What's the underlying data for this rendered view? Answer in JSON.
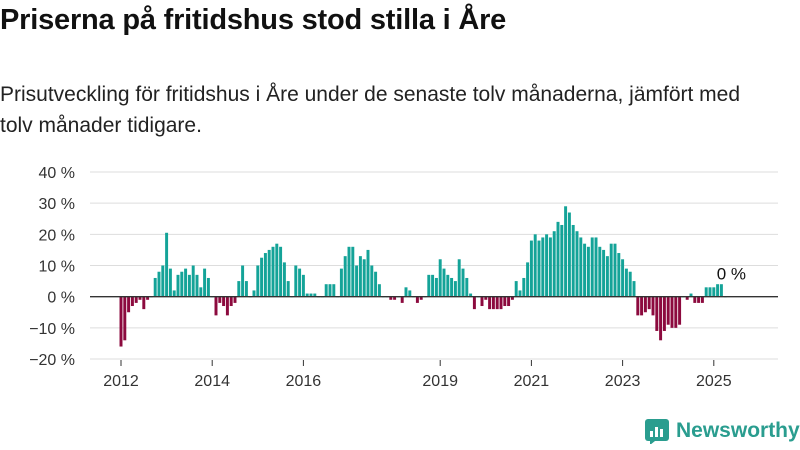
{
  "title": "Priserna på fritidshus stod stilla i Åre",
  "subtitle": "Prisutveckling för fritidshus i Åre under de senaste tolv månaderna, jämfört med tolv månader tidigare.",
  "brand": "Newsworthy",
  "colors": {
    "positive": "#14a398",
    "negative": "#8c0a3e",
    "grid": "#dddddd",
    "axis": "#333333",
    "brand": "#2a9d8f"
  },
  "chart_data": {
    "type": "bar",
    "ylim": [
      -20,
      40
    ],
    "yticks": [
      -20,
      -10,
      0,
      10,
      20,
      30,
      40
    ],
    "ytick_labels": [
      "−20 %",
      "−10 %",
      "0 %",
      "10 %",
      "20 %",
      "30 %",
      "40 %"
    ],
    "xticks": [
      {
        "label": "2012",
        "x": "2012-01"
      },
      {
        "label": "2014",
        "x": "2014-01"
      },
      {
        "label": "2016",
        "x": "2016-01"
      },
      {
        "label": "2019",
        "x": "2019-01"
      },
      {
        "label": "2021",
        "x": "2021-01"
      },
      {
        "label": "2023",
        "x": "2023-01"
      },
      {
        "label": "2025",
        "x": "2025-01"
      }
    ],
    "annotation": {
      "text": "0 %",
      "x": "2025-03"
    },
    "x": [
      "2012-01",
      "2012-02",
      "2012-03",
      "2012-04",
      "2012-05",
      "2012-06",
      "2012-07",
      "2012-08",
      "2012-09",
      "2012-10",
      "2012-11",
      "2012-12",
      "2013-01",
      "2013-02",
      "2013-03",
      "2013-04",
      "2013-05",
      "2013-06",
      "2013-07",
      "2013-08",
      "2013-09",
      "2013-10",
      "2013-11",
      "2013-12",
      "2014-01",
      "2014-02",
      "2014-03",
      "2014-04",
      "2014-05",
      "2014-06",
      "2014-07",
      "2014-08",
      "2014-09",
      "2014-10",
      "2014-11",
      "2014-12",
      "2015-01",
      "2015-02",
      "2015-03",
      "2015-04",
      "2015-05",
      "2015-06",
      "2015-07",
      "2015-08",
      "2015-09",
      "2015-10",
      "2015-11",
      "2015-12",
      "2016-01",
      "2016-02",
      "2016-03",
      "2016-04",
      "2016-05",
      "2016-06",
      "2016-07",
      "2016-08",
      "2016-09",
      "2016-10",
      "2016-11",
      "2016-12",
      "2017-01",
      "2017-02",
      "2017-03",
      "2017-04",
      "2017-05",
      "2017-06",
      "2017-07",
      "2017-08",
      "2017-09",
      "2017-10",
      "2017-11",
      "2017-12",
      "2018-01",
      "2018-02",
      "2018-03",
      "2018-04",
      "2018-05",
      "2018-06",
      "2018-07",
      "2018-08",
      "2018-09",
      "2018-10",
      "2018-11",
      "2018-12",
      "2019-01",
      "2019-02",
      "2019-03",
      "2019-04",
      "2019-05",
      "2019-06",
      "2019-07",
      "2019-08",
      "2019-09",
      "2019-10",
      "2019-11",
      "2019-12",
      "2020-01",
      "2020-02",
      "2020-03",
      "2020-04",
      "2020-05",
      "2020-06",
      "2020-07",
      "2020-08",
      "2020-09",
      "2020-10",
      "2020-11",
      "2020-12",
      "2021-01",
      "2021-02",
      "2021-03",
      "2021-04",
      "2021-05",
      "2021-06",
      "2021-07",
      "2021-08",
      "2021-09",
      "2021-10",
      "2021-11",
      "2021-12",
      "2022-01",
      "2022-02",
      "2022-03",
      "2022-04",
      "2022-05",
      "2022-06",
      "2022-07",
      "2022-08",
      "2022-09",
      "2022-10",
      "2022-11",
      "2022-12",
      "2023-01",
      "2023-02",
      "2023-03",
      "2023-04",
      "2023-05",
      "2023-06",
      "2023-07",
      "2023-08",
      "2023-09",
      "2023-10",
      "2023-11",
      "2023-12",
      "2024-01",
      "2024-02",
      "2024-03",
      "2024-04",
      "2024-05",
      "2024-06",
      "2024-07",
      "2024-08",
      "2024-09",
      "2024-10",
      "2024-11",
      "2024-12",
      "2025-01",
      "2025-02",
      "2025-03",
      "2025-04"
    ],
    "values": [
      -16,
      -14,
      -5,
      -3,
      -2,
      -1,
      -4,
      -1,
      0,
      6,
      8,
      10,
      20.5,
      9,
      2,
      7,
      8,
      9,
      7,
      10,
      7,
      3,
      9,
      6,
      0,
      -6,
      -2,
      -3,
      -6,
      -3,
      -2,
      5,
      10,
      5,
      0,
      2,
      10,
      12.5,
      14,
      15,
      16,
      17,
      16,
      11,
      5,
      0,
      10,
      9,
      7,
      1,
      1,
      1,
      0,
      0,
      4,
      4,
      4,
      0,
      9,
      13,
      16,
      16,
      10,
      13,
      12,
      15,
      10,
      8,
      4,
      0,
      0,
      -1,
      -1,
      0,
      -2,
      3,
      2,
      0,
      -2,
      -1,
      0,
      7,
      7,
      6,
      12,
      9,
      7,
      6,
      5,
      12,
      9,
      6,
      1,
      -4,
      0,
      -3,
      -1,
      -4,
      -4,
      -4,
      -4,
      -3,
      -3,
      -1,
      5,
      2,
      6,
      11,
      18,
      20,
      18,
      19,
      20,
      19,
      21,
      24,
      23,
      29,
      27,
      23,
      21,
      19,
      17,
      16,
      19,
      19,
      16,
      15,
      13,
      17,
      17,
      14,
      12,
      9,
      8,
      5,
      -6,
      -6,
      -5,
      -4,
      -6,
      -11,
      -14,
      -11,
      -9,
      -10,
      -10,
      -9,
      0,
      -1,
      1,
      -2,
      -2,
      -2,
      3,
      3,
      3,
      4,
      4,
      0
    ]
  }
}
